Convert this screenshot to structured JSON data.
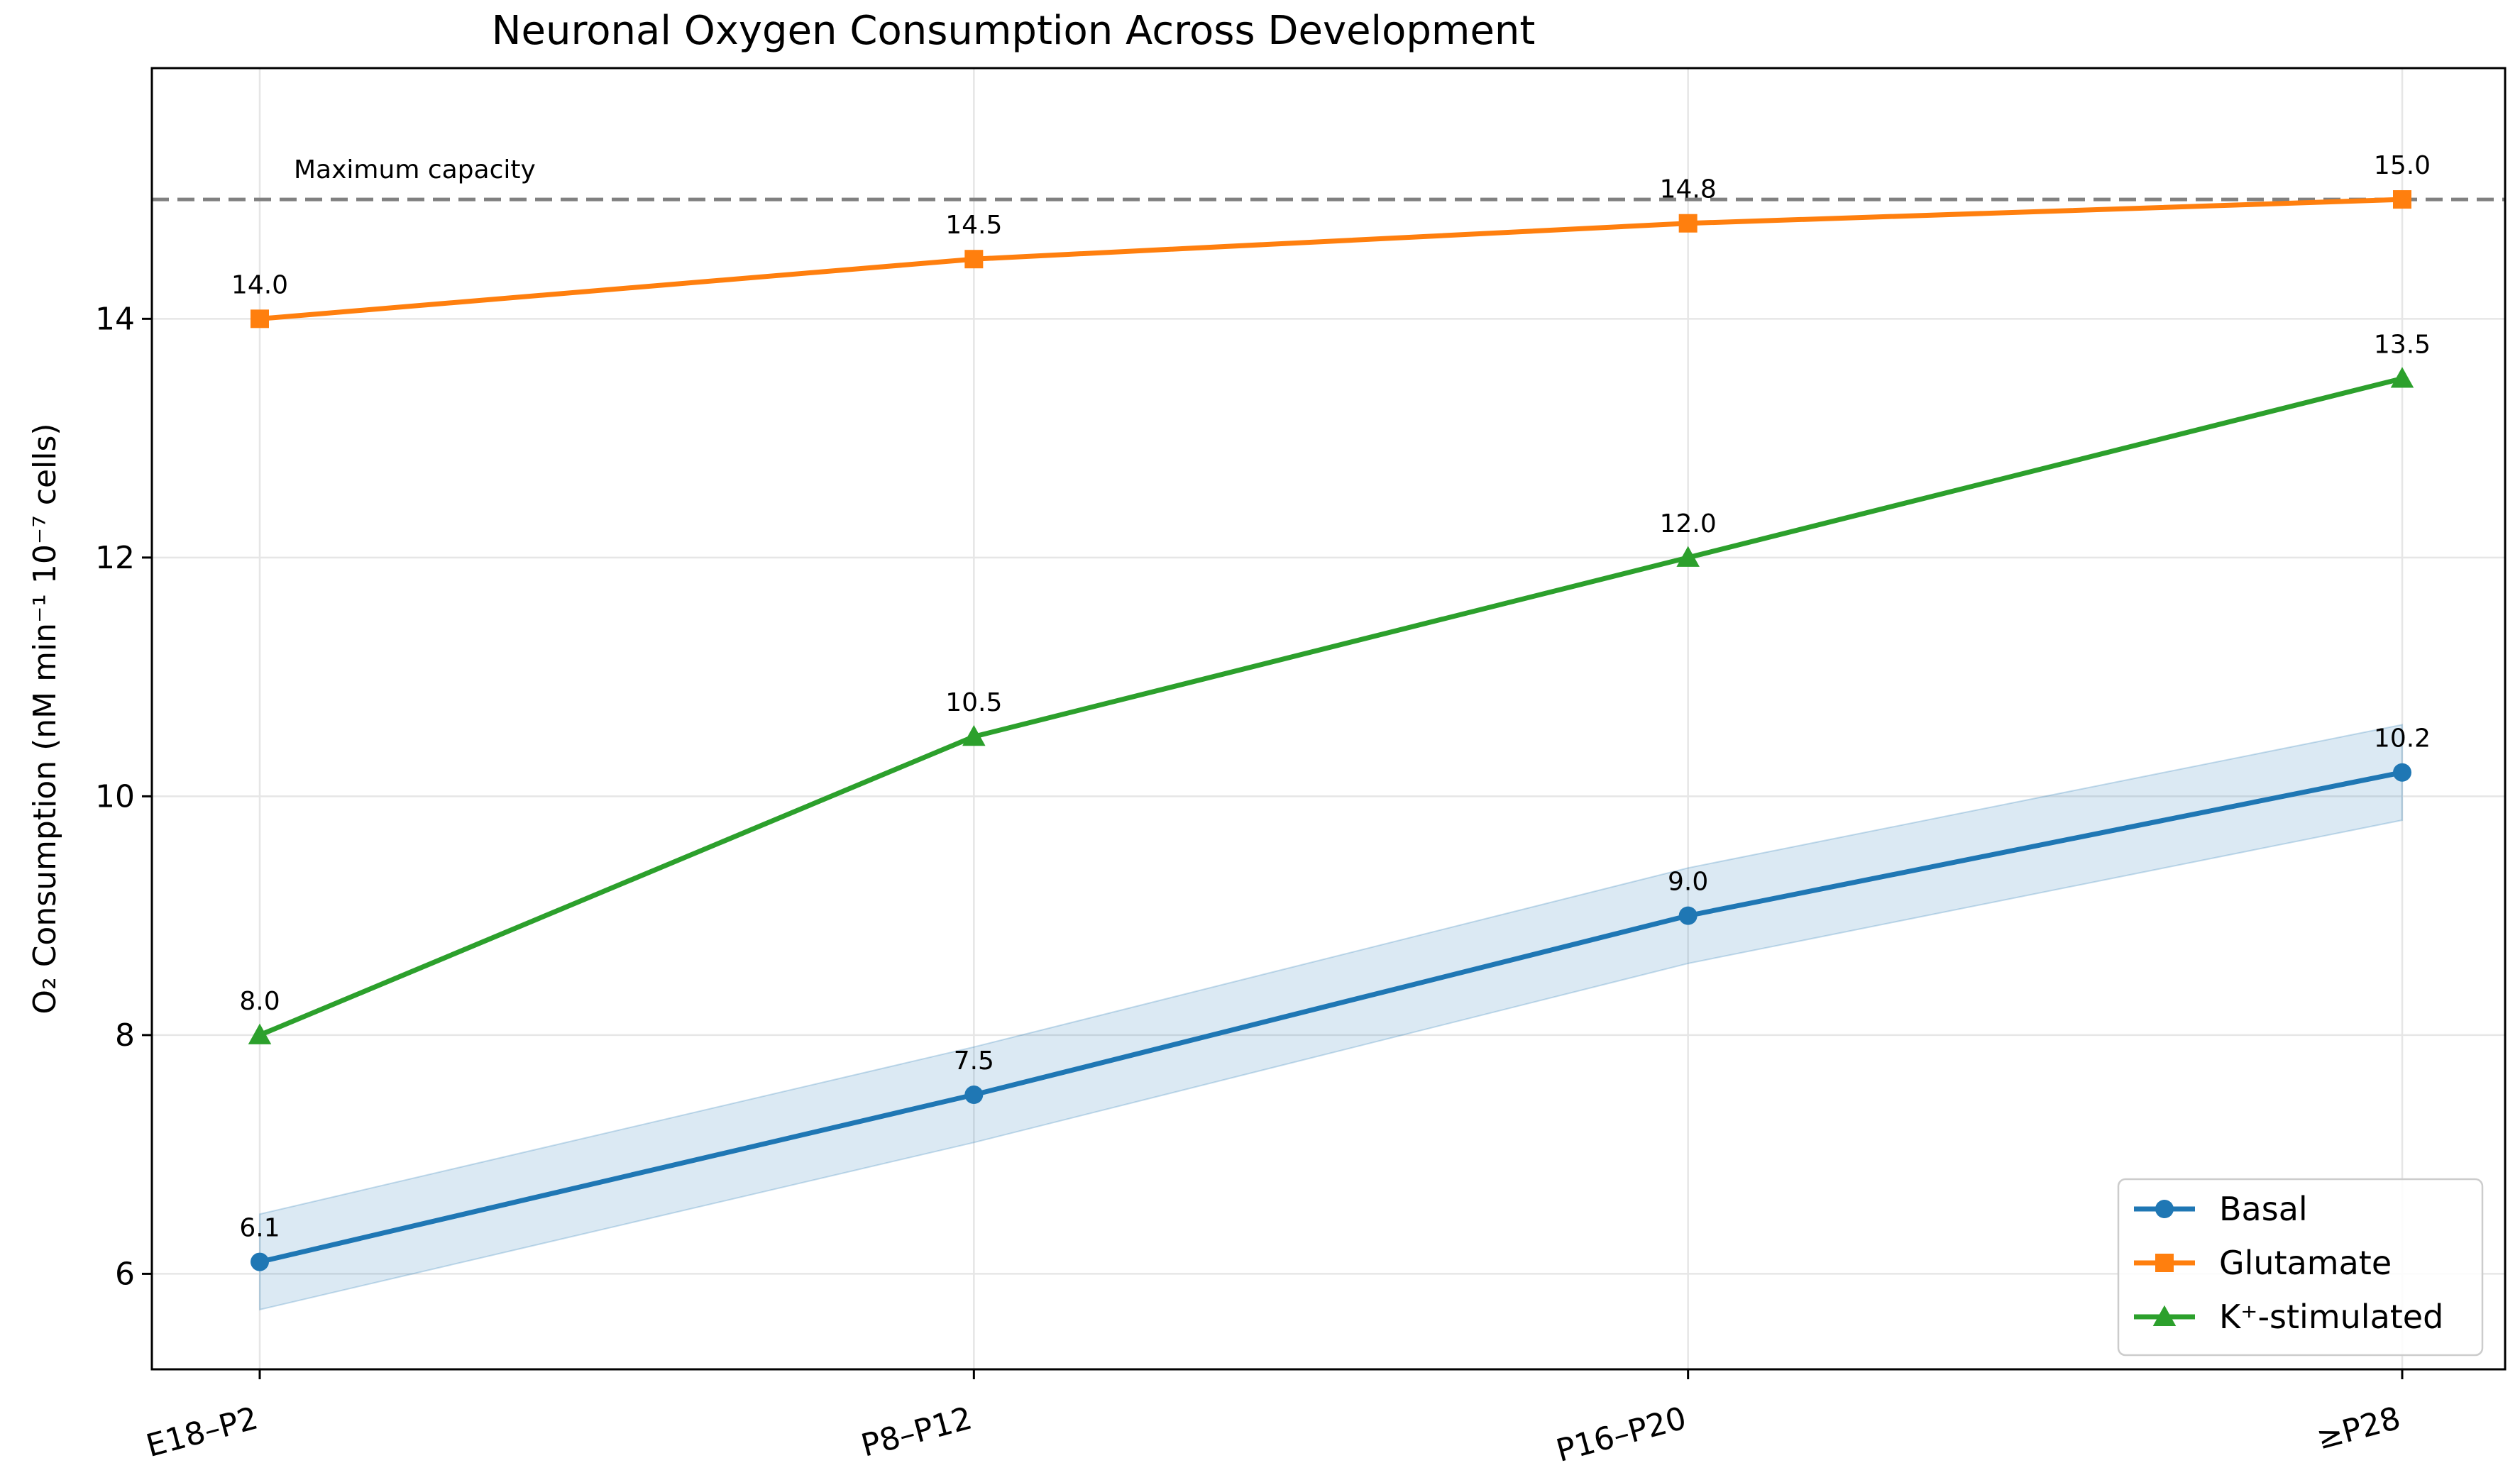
{
  "chart_data": {
    "type": "line",
    "title": "Neuronal Oxygen Consumption Across Development",
    "xlabel": "",
    "ylabel": "O₂ Consumption (nM min⁻¹ 10⁻⁷ cells)",
    "categories": [
      "E18–P2",
      "P8–P12",
      "P16–P20",
      "≥P28"
    ],
    "ylim": [
      5.2,
      16.1
    ],
    "yticks": [
      6,
      8,
      10,
      12,
      14
    ],
    "grid": true,
    "legend_position": "lower-right",
    "series": [
      {
        "name": "Basal",
        "color": "#1f77b4",
        "marker": "circle",
        "values": [
          6.1,
          7.5,
          9.0,
          10.2
        ],
        "value_labels": [
          "6.1",
          "7.5",
          "9.0",
          "10.2"
        ],
        "band_lower": [
          5.7,
          7.1,
          8.6,
          9.8
        ],
        "band_upper": [
          6.5,
          7.9,
          9.4,
          10.6
        ]
      },
      {
        "name": "Glutamate",
        "color": "#ff7f0e",
        "marker": "square",
        "values": [
          14.0,
          14.5,
          14.8,
          15.0
        ],
        "value_labels": [
          "14.0",
          "14.5",
          "14.8",
          "15.0"
        ]
      },
      {
        "name": "K⁺-stimulated",
        "color": "#2ca02c",
        "marker": "triangle",
        "values": [
          8.0,
          10.5,
          12.0,
          13.5
        ],
        "value_labels": [
          "8.0",
          "10.5",
          "12.0",
          "13.5"
        ]
      }
    ],
    "reference_line": {
      "value": 15.0,
      "label": "Maximum capacity",
      "color": "#808080"
    }
  }
}
